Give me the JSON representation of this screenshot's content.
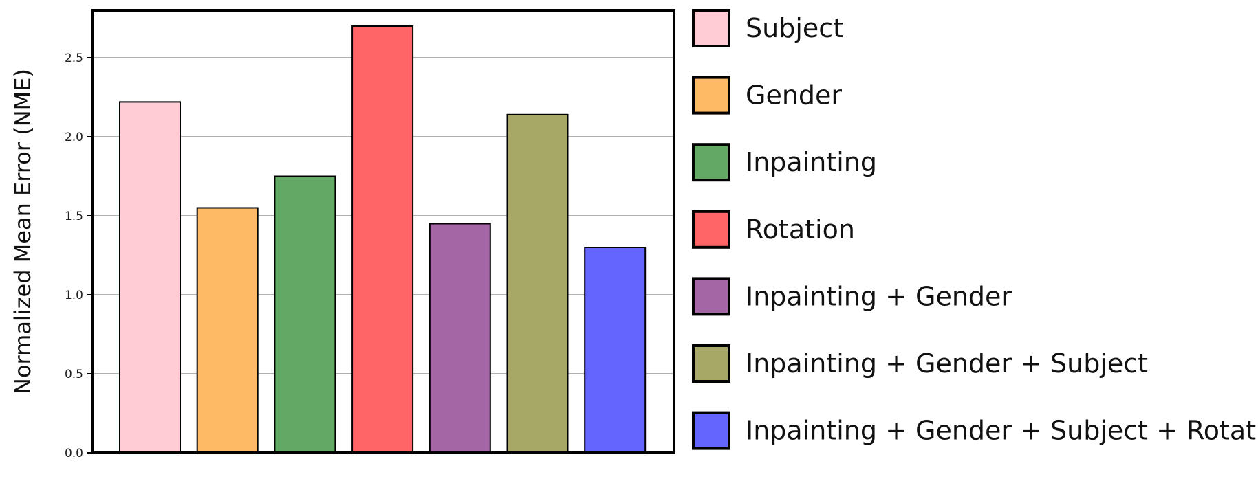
{
  "chart_data": {
    "type": "bar",
    "title": "",
    "xlabel": "",
    "ylabel": "Normalized Mean Error (NME)",
    "ylim": [
      0,
      2.8
    ],
    "yticks": [
      "0.0",
      "0.5",
      "1.0",
      "1.5",
      "2.0",
      "2.5"
    ],
    "grid": true,
    "legend_position": "right",
    "categories": [
      "Subject",
      "Gender",
      "Inpainting",
      "Rotation",
      "Inpainting + Gender",
      "Inpainting + Gender + Subject",
      "Inpainting + Gender + Subject + Rotation"
    ],
    "values": [
      2.22,
      1.55,
      1.75,
      2.7,
      1.45,
      2.14,
      1.3
    ],
    "colors": [
      "#ffccd5",
      "#ffba66",
      "#63a864",
      "#ff6466",
      "#a566a6",
      "#a8a866",
      "#6464ff"
    ]
  }
}
